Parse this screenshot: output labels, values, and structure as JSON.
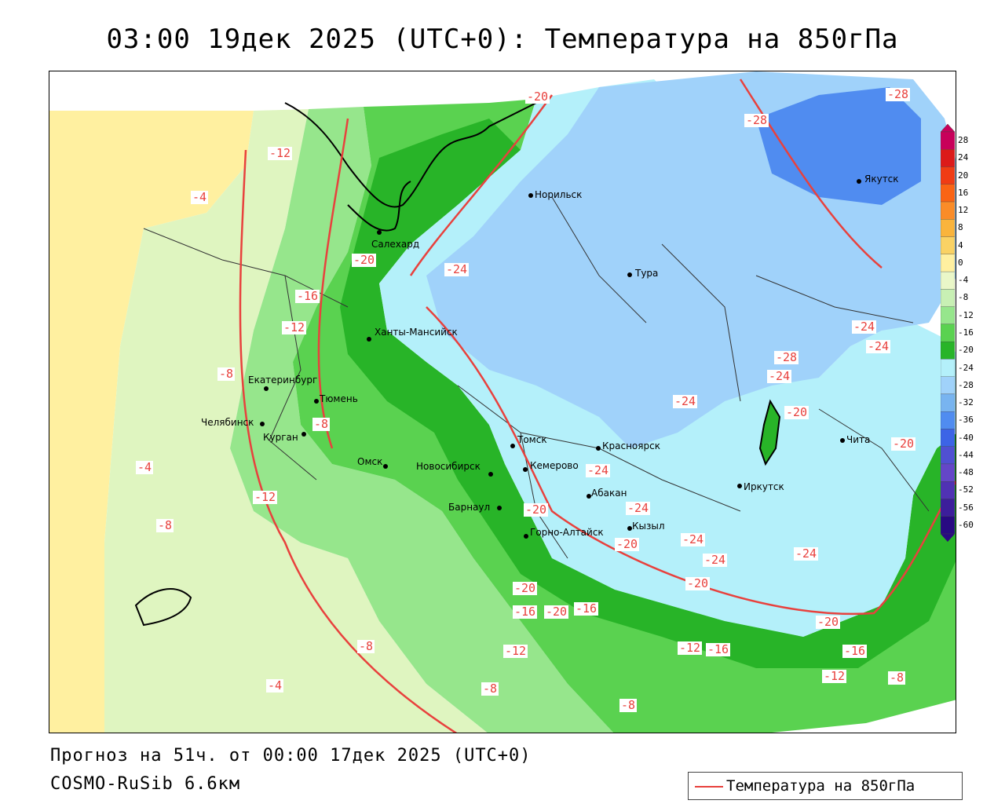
{
  "title": "03:00 19дек 2025 (UTC+0): Температура на 850гПа",
  "footer": {
    "forecast": "Прогноз на 51ч. от 00:00 17дек 2025 (UTC+0)",
    "model": "COSMO-RuSib 6.6км"
  },
  "legend": {
    "label": "Температура на 850гПа",
    "color": "#e8413d"
  },
  "colorbar": {
    "ticks": [
      "28",
      "24",
      "20",
      "16",
      "12",
      "8",
      "4",
      "0",
      "-4",
      "-8",
      "-12",
      "-16",
      "-20",
      "-24",
      "-28",
      "-32",
      "-36",
      "-40",
      "-44",
      "-48",
      "-52",
      "-56",
      "-60"
    ],
    "colors": [
      "#c8005a",
      "#dc1a1a",
      "#f03c14",
      "#fa6414",
      "#fa8c28",
      "#fab43c",
      "#fad264",
      "#fff0a0",
      "#eaf7c8",
      "#c8f0b4",
      "#96e68c",
      "#5ad250",
      "#28b428",
      "#b4f0fa",
      "#a0d2fa",
      "#78b4f0",
      "#508cf0",
      "#3c64e6",
      "#5050d2",
      "#6446c8",
      "#5032b4",
      "#3c1e9b",
      "#280a82"
    ]
  },
  "cities": [
    {
      "name": "Норильск"
    },
    {
      "name": "Салехард"
    },
    {
      "name": "Тура"
    },
    {
      "name": "Якутск"
    },
    {
      "name": "Ханты-Мансийск"
    },
    {
      "name": "Екатеринбург"
    },
    {
      "name": "Тюмень"
    },
    {
      "name": "Челябинск"
    },
    {
      "name": "Курган"
    },
    {
      "name": "Омск"
    },
    {
      "name": "Новосибирск"
    },
    {
      "name": "Томск"
    },
    {
      "name": "Кемерово"
    },
    {
      "name": "Красноярск"
    },
    {
      "name": "Барнаул"
    },
    {
      "name": "Абакан"
    },
    {
      "name": "Горно-Алтайск"
    },
    {
      "name": "Кызыл"
    },
    {
      "name": "Иркутск"
    },
    {
      "name": "Чита"
    }
  ],
  "isotherm_labels": [
    "-20",
    "-28",
    "-28",
    "-12",
    "-4",
    "-20",
    "-24",
    "-16",
    "-12",
    "-8",
    "-8",
    "-4",
    "-12",
    "-8",
    "-24",
    "-28",
    "-24",
    "-24",
    "-24",
    "-20",
    "-20",
    "-24",
    "-20",
    "-24",
    "-24",
    "-20",
    "-24",
    "-20",
    "-16",
    "-20",
    "-16",
    "-8",
    "-12",
    "-12",
    "-16",
    "-20",
    "-16",
    "-12",
    "-8",
    "-4",
    "-8",
    "-8",
    "-20",
    "-24"
  ]
}
